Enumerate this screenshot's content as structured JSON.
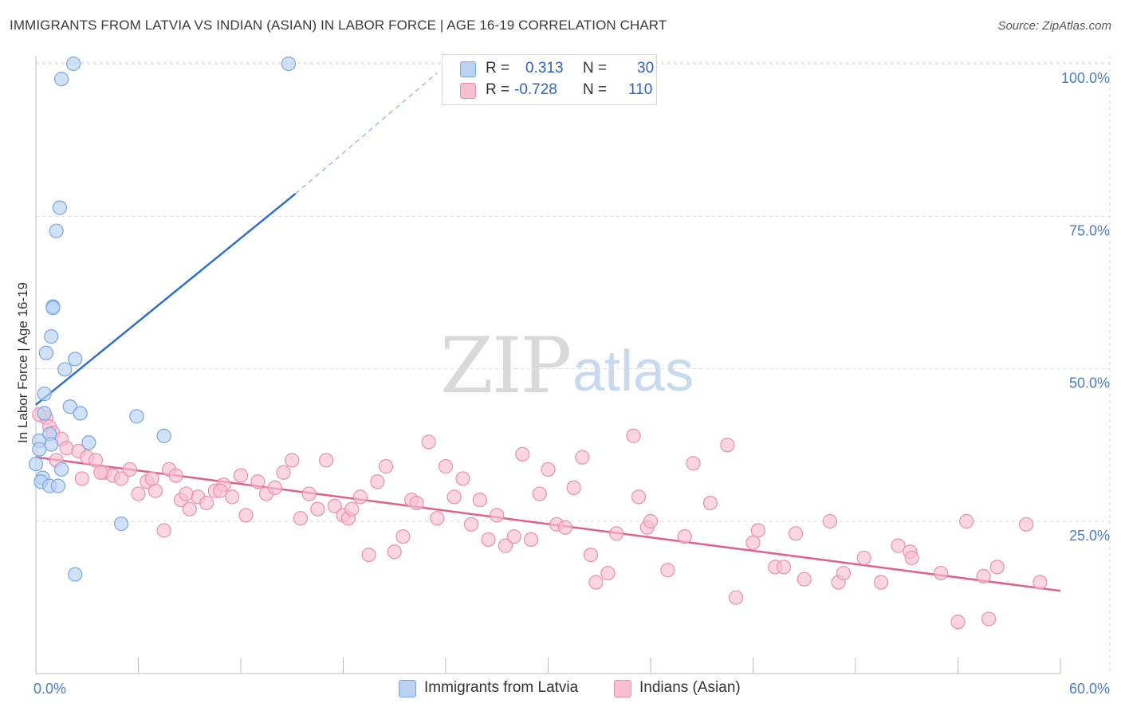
{
  "title": "IMMIGRANTS FROM LATVIA VS INDIAN (ASIAN) IN LABOR FORCE | AGE 16-19 CORRELATION CHART",
  "source": "Source: ZipAtlas.com",
  "watermark": {
    "zip": "ZIP",
    "atlas": "atlas"
  },
  "colors": {
    "blue_fill": "#b9d2f2",
    "blue_stroke": "#7aa6e0",
    "blue_line": "#2c6fce",
    "pink_fill": "#f7c0d2",
    "pink_stroke": "#eb8fb0",
    "pink_line": "#e05f8e",
    "grid": "#dcdcdc",
    "tick_text": "#4a7cc7"
  },
  "legend_top": {
    "rows": [
      {
        "r_label": "R =",
        "r_value": "0.313",
        "n_label": "N =",
        "n_value": "30"
      },
      {
        "r_label": "R =",
        "r_value": "-0.728",
        "n_label": "N =",
        "n_value": "110"
      }
    ]
  },
  "legend_bottom": {
    "items": [
      "Immigrants from Latvia",
      "Indians (Asian)"
    ]
  },
  "chart_data": {
    "type": "scatter",
    "xlabel": "",
    "ylabel": "In Labor Force | Age 16-19",
    "xlim": [
      0,
      60
    ],
    "ylim": [
      0,
      102
    ],
    "x_tick_labels": [
      "0.0%",
      "60.0%"
    ],
    "y_ticks": [
      25,
      50,
      75,
      100
    ],
    "y_tick_labels": [
      "25.0%",
      "50.0%",
      "75.0%",
      "100.0%"
    ],
    "grid": true,
    "series": [
      {
        "name": "Immigrants from Latvia",
        "color": "#b9d2f2",
        "trend": {
          "x0": 0,
          "y0": 44.1,
          "x1": 15.2,
          "y1": 78.7,
          "dash_to_x": 23.5,
          "dash_to_y": 98.5
        },
        "points": [
          [
            2.2,
            100.0
          ],
          [
            14.8,
            100.0
          ],
          [
            1.5,
            97.5
          ],
          [
            1.4,
            76.4
          ],
          [
            1.2,
            72.6
          ],
          [
            1.0,
            60.2
          ],
          [
            1.0,
            60.0
          ],
          [
            0.9,
            55.3
          ],
          [
            0.6,
            52.6
          ],
          [
            2.3,
            51.6
          ],
          [
            1.7,
            49.9
          ],
          [
            0.5,
            45.9
          ],
          [
            2.0,
            43.8
          ],
          [
            2.6,
            42.7
          ],
          [
            5.9,
            42.2
          ],
          [
            0.5,
            42.7
          ],
          [
            0.8,
            39.3
          ],
          [
            7.5,
            39.0
          ],
          [
            3.1,
            37.9
          ],
          [
            0.9,
            37.6
          ],
          [
            0.2,
            38.2
          ],
          [
            0.2,
            36.8
          ],
          [
            0.0,
            34.4
          ],
          [
            1.5,
            33.5
          ],
          [
            0.4,
            32.1
          ],
          [
            0.3,
            31.5
          ],
          [
            0.8,
            30.8
          ],
          [
            1.3,
            30.8
          ],
          [
            5.0,
            24.6
          ],
          [
            2.3,
            16.3
          ]
        ]
      },
      {
        "name": "Indians (Asian)",
        "color": "#f7c0d2",
        "trend": {
          "x0": 0,
          "y0": 35.5,
          "x1": 60,
          "y1": 13.6
        },
        "points": [
          [
            0.6,
            42.0
          ],
          [
            0.8,
            40.5
          ],
          [
            1.0,
            39.5
          ],
          [
            1.5,
            38.5
          ],
          [
            1.8,
            37.0
          ],
          [
            2.5,
            36.5
          ],
          [
            3.0,
            35.5
          ],
          [
            3.5,
            35.0
          ],
          [
            4.0,
            33.0
          ],
          [
            4.5,
            32.5
          ],
          [
            5.0,
            32.0
          ],
          [
            5.5,
            33.5
          ],
          [
            6.0,
            29.5
          ],
          [
            6.5,
            31.5
          ],
          [
            7.0,
            30.0
          ],
          [
            7.5,
            23.5
          ],
          [
            7.8,
            33.5
          ],
          [
            8.2,
            32.5
          ],
          [
            8.5,
            28.5
          ],
          [
            9.0,
            27.0
          ],
          [
            9.5,
            29.0
          ],
          [
            10.0,
            28.0
          ],
          [
            10.5,
            30.0
          ],
          [
            11.0,
            31.0
          ],
          [
            11.5,
            29.0
          ],
          [
            12.0,
            32.5
          ],
          [
            12.3,
            26.0
          ],
          [
            13.0,
            31.5
          ],
          [
            13.5,
            29.5
          ],
          [
            14.0,
            30.5
          ],
          [
            14.5,
            33.0
          ],
          [
            15.0,
            35.0
          ],
          [
            15.5,
            25.5
          ],
          [
            16.0,
            29.5
          ],
          [
            16.5,
            27.0
          ],
          [
            17.0,
            35.0
          ],
          [
            17.5,
            27.5
          ],
          [
            18.0,
            26.0
          ],
          [
            18.3,
            25.5
          ],
          [
            18.5,
            27.0
          ],
          [
            19.0,
            29.0
          ],
          [
            19.5,
            19.5
          ],
          [
            20.0,
            31.5
          ],
          [
            20.5,
            34.0
          ],
          [
            21.0,
            20.0
          ],
          [
            21.5,
            22.5
          ],
          [
            22.0,
            28.5
          ],
          [
            22.3,
            28.0
          ],
          [
            23.0,
            38.0
          ],
          [
            23.5,
            25.5
          ],
          [
            24.0,
            34.0
          ],
          [
            24.5,
            29.0
          ],
          [
            25.0,
            32.0
          ],
          [
            25.5,
            24.5
          ],
          [
            26.0,
            28.5
          ],
          [
            26.5,
            22.0
          ],
          [
            27.0,
            26.0
          ],
          [
            27.5,
            21.0
          ],
          [
            28.0,
            22.5
          ],
          [
            28.5,
            36.0
          ],
          [
            29.0,
            22.0
          ],
          [
            29.5,
            29.5
          ],
          [
            30.0,
            33.5
          ],
          [
            30.5,
            24.5
          ],
          [
            31.0,
            24.0
          ],
          [
            31.5,
            30.5
          ],
          [
            32.0,
            35.5
          ],
          [
            32.5,
            19.5
          ],
          [
            32.8,
            15.0
          ],
          [
            33.5,
            16.5
          ],
          [
            34.0,
            23.0
          ],
          [
            35.0,
            39.0
          ],
          [
            35.3,
            29.0
          ],
          [
            35.8,
            24.0
          ],
          [
            36.0,
            25.0
          ],
          [
            37.0,
            17.0
          ],
          [
            38.0,
            22.5
          ],
          [
            38.5,
            34.5
          ],
          [
            39.5,
            28.0
          ],
          [
            40.5,
            37.5
          ],
          [
            41.0,
            12.5
          ],
          [
            42.0,
            21.5
          ],
          [
            42.3,
            23.5
          ],
          [
            43.3,
            17.5
          ],
          [
            43.8,
            17.5
          ],
          [
            44.5,
            23.0
          ],
          [
            45.0,
            15.5
          ],
          [
            46.5,
            25.0
          ],
          [
            47.0,
            15.0
          ],
          [
            47.3,
            16.5
          ],
          [
            48.5,
            19.0
          ],
          [
            49.5,
            15.0
          ],
          [
            50.5,
            21.0
          ],
          [
            51.2,
            20.0
          ],
          [
            51.3,
            19.0
          ],
          [
            53.0,
            16.5
          ],
          [
            54.5,
            25.0
          ],
          [
            55.5,
            16.0
          ],
          [
            56.3,
            17.5
          ],
          [
            58.0,
            24.5
          ],
          [
            54.0,
            8.5
          ],
          [
            55.8,
            9.0
          ],
          [
            58.8,
            15.0
          ],
          [
            1.2,
            35.0
          ],
          [
            0.2,
            42.5
          ],
          [
            2.7,
            32.0
          ],
          [
            3.8,
            33.0
          ],
          [
            6.8,
            32.0
          ],
          [
            8.8,
            29.5
          ],
          [
            10.8,
            30.0
          ]
        ]
      }
    ]
  }
}
